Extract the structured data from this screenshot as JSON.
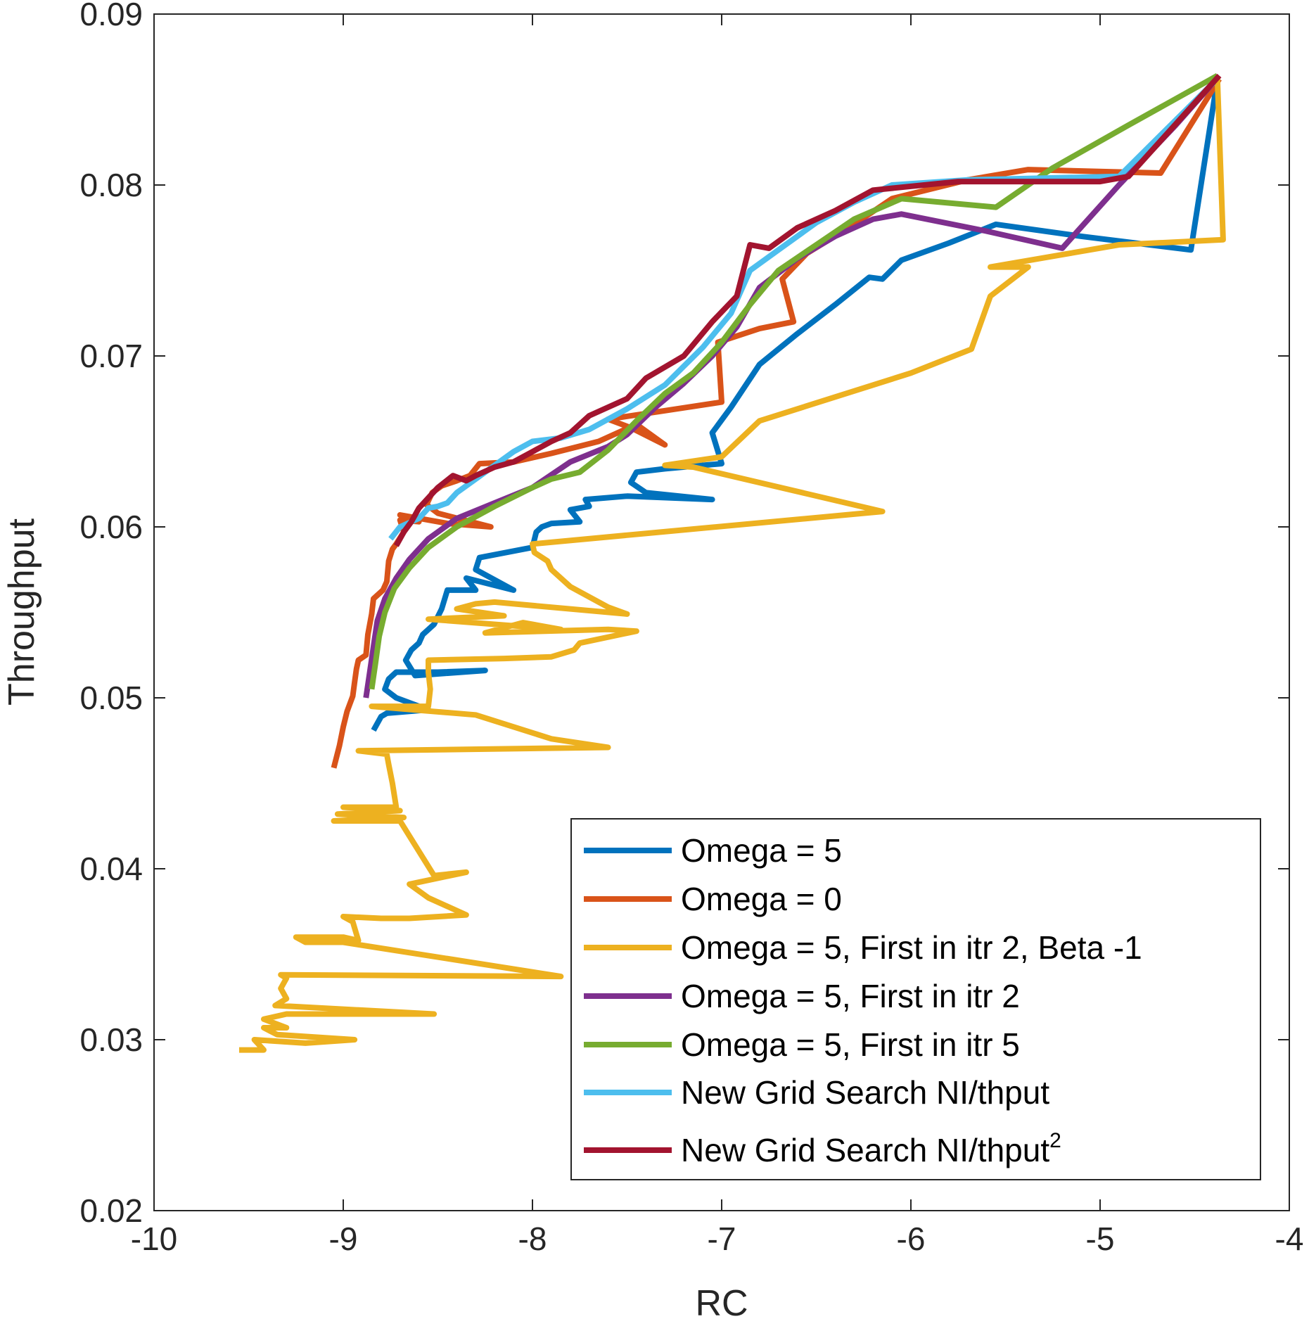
{
  "chart_data": {
    "type": "line",
    "title": "",
    "xlabel": "RC",
    "ylabel": "Throughput",
    "xlim": [
      -10,
      -4
    ],
    "ylim": [
      0.02,
      0.09
    ],
    "xticks": [
      -10,
      -9,
      -8,
      -7,
      -6,
      -5,
      -4
    ],
    "xtick_labels": [
      "-10",
      "-9",
      "-8",
      "-7",
      "-6",
      "-5",
      "-4"
    ],
    "yticks": [
      0.02,
      0.03,
      0.04,
      0.05,
      0.06,
      0.07,
      0.08,
      0.09
    ],
    "ytick_labels": [
      "0.02",
      "0.03",
      "0.04",
      "0.05",
      "0.06",
      "0.07",
      "0.08",
      "0.09"
    ],
    "grid": false,
    "legend_position": "bottom-right",
    "series": [
      {
        "name": "Omega = 5",
        "color": "#0072BD",
        "points": [
          [
            -8.84,
            0.0481
          ],
          [
            -8.8,
            0.0489
          ],
          [
            -8.77,
            0.0491
          ],
          [
            -8.55,
            0.0493
          ],
          [
            -8.72,
            0.05
          ],
          [
            -8.78,
            0.0505
          ],
          [
            -8.76,
            0.0511
          ],
          [
            -8.72,
            0.0515
          ],
          [
            -8.5,
            0.0515
          ],
          [
            -8.25,
            0.0516
          ],
          [
            -8.62,
            0.0513
          ],
          [
            -8.67,
            0.0522
          ],
          [
            -8.64,
            0.0528
          ],
          [
            -8.6,
            0.0532
          ],
          [
            -8.58,
            0.0537
          ],
          [
            -8.52,
            0.0543
          ],
          [
            -8.48,
            0.0552
          ],
          [
            -8.45,
            0.0563
          ],
          [
            -8.3,
            0.0563
          ],
          [
            -8.35,
            0.057
          ],
          [
            -8.1,
            0.0563
          ],
          [
            -8.3,
            0.0575
          ],
          [
            -8.28,
            0.0582
          ],
          [
            -8.0,
            0.0588
          ],
          [
            -7.98,
            0.0597
          ],
          [
            -7.95,
            0.06
          ],
          [
            -7.9,
            0.0602
          ],
          [
            -7.75,
            0.0603
          ],
          [
            -7.8,
            0.061
          ],
          [
            -7.7,
            0.0612
          ],
          [
            -7.72,
            0.0616
          ],
          [
            -7.5,
            0.0618
          ],
          [
            -7.05,
            0.0616
          ],
          [
            -7.4,
            0.062
          ],
          [
            -7.48,
            0.0626
          ],
          [
            -7.45,
            0.0632
          ],
          [
            -7.3,
            0.0634
          ],
          [
            -7.0,
            0.0637
          ],
          [
            -7.05,
            0.0655
          ],
          [
            -6.95,
            0.067
          ],
          [
            -6.8,
            0.0695
          ],
          [
            -6.6,
            0.0713
          ],
          [
            -6.4,
            0.073
          ],
          [
            -6.22,
            0.0746
          ],
          [
            -6.15,
            0.0745
          ],
          [
            -6.05,
            0.0756
          ],
          [
            -5.8,
            0.0766
          ],
          [
            -5.55,
            0.0777
          ],
          [
            -5.1,
            0.077
          ],
          [
            -4.52,
            0.0762
          ],
          [
            -4.38,
            0.0862
          ]
        ]
      },
      {
        "name": "Omega = 0",
        "color": "#D95319",
        "points": [
          [
            -9.05,
            0.0459
          ],
          [
            -9.02,
            0.0472
          ],
          [
            -9.0,
            0.0483
          ],
          [
            -8.98,
            0.0492
          ],
          [
            -8.95,
            0.0501
          ],
          [
            -8.94,
            0.0509
          ],
          [
            -8.93,
            0.0517
          ],
          [
            -8.92,
            0.0522
          ],
          [
            -8.88,
            0.0525
          ],
          [
            -8.87,
            0.0537
          ],
          [
            -8.85,
            0.0549
          ],
          [
            -8.84,
            0.0558
          ],
          [
            -8.79,
            0.0563
          ],
          [
            -8.77,
            0.0568
          ],
          [
            -8.76,
            0.058
          ],
          [
            -8.74,
            0.0587
          ],
          [
            -8.72,
            0.059
          ],
          [
            -8.68,
            0.0597
          ],
          [
            -8.7,
            0.0604
          ],
          [
            -8.6,
            0.0603
          ],
          [
            -8.7,
            0.0607
          ],
          [
            -8.45,
            0.0602
          ],
          [
            -8.22,
            0.06
          ],
          [
            -8.5,
            0.0608
          ],
          [
            -8.56,
            0.0613
          ],
          [
            -8.53,
            0.062
          ],
          [
            -8.48,
            0.0624
          ],
          [
            -8.4,
            0.0627
          ],
          [
            -8.33,
            0.063
          ],
          [
            -8.28,
            0.0637
          ],
          [
            -8.1,
            0.0638
          ],
          [
            -7.9,
            0.0643
          ],
          [
            -7.65,
            0.065
          ],
          [
            -7.45,
            0.066
          ],
          [
            -7.3,
            0.0648
          ],
          [
            -7.48,
            0.0658
          ],
          [
            -7.6,
            0.0663
          ],
          [
            -7.3,
            0.0668
          ],
          [
            -7.0,
            0.0673
          ],
          [
            -7.02,
            0.0708
          ],
          [
            -6.8,
            0.0716
          ],
          [
            -6.62,
            0.072
          ],
          [
            -6.68,
            0.0745
          ],
          [
            -6.55,
            0.076
          ],
          [
            -6.3,
            0.0777
          ],
          [
            -6.1,
            0.0792
          ],
          [
            -5.7,
            0.0803
          ],
          [
            -5.38,
            0.0809
          ],
          [
            -4.68,
            0.0807
          ],
          [
            -4.37,
            0.0862
          ]
        ]
      },
      {
        "name": "Omega = 5, First in itr 2, Beta -1",
        "color": "#EDB120",
        "points": [
          [
            -9.55,
            0.0294
          ],
          [
            -9.42,
            0.0294
          ],
          [
            -9.47,
            0.03
          ],
          [
            -9.2,
            0.0298
          ],
          [
            -8.94,
            0.03
          ],
          [
            -9.35,
            0.0303
          ],
          [
            -9.42,
            0.0307
          ],
          [
            -9.3,
            0.0307
          ],
          [
            -9.42,
            0.0312
          ],
          [
            -9.3,
            0.0315
          ],
          [
            -8.52,
            0.0315
          ],
          [
            -9.36,
            0.032
          ],
          [
            -9.3,
            0.0324
          ],
          [
            -9.33,
            0.033
          ],
          [
            -9.3,
            0.0336
          ],
          [
            -9.33,
            0.0338
          ],
          [
            -7.85,
            0.0337
          ],
          [
            -9.0,
            0.0357
          ],
          [
            -9.2,
            0.0357
          ],
          [
            -9.25,
            0.036
          ],
          [
            -9.0,
            0.036
          ],
          [
            -8.92,
            0.0358
          ],
          [
            -8.95,
            0.0369
          ],
          [
            -9.0,
            0.0372
          ],
          [
            -8.8,
            0.0371
          ],
          [
            -8.65,
            0.0371
          ],
          [
            -8.35,
            0.0373
          ],
          [
            -8.55,
            0.0383
          ],
          [
            -8.65,
            0.0391
          ],
          [
            -8.35,
            0.0398
          ],
          [
            -8.52,
            0.0396
          ],
          [
            -8.7,
            0.0428
          ],
          [
            -9.05,
            0.0428
          ],
          [
            -8.68,
            0.043
          ],
          [
            -9.03,
            0.0432
          ],
          [
            -8.7,
            0.0434
          ],
          [
            -9.0,
            0.0436
          ],
          [
            -8.72,
            0.0436
          ],
          [
            -8.74,
            0.045
          ],
          [
            -8.76,
            0.0461
          ],
          [
            -8.77,
            0.0467
          ],
          [
            -8.92,
            0.0469
          ],
          [
            -7.6,
            0.0471
          ],
          [
            -7.9,
            0.0476
          ],
          [
            -8.3,
            0.049
          ],
          [
            -8.85,
            0.0495
          ],
          [
            -8.55,
            0.0495
          ],
          [
            -8.54,
            0.0505
          ],
          [
            -8.55,
            0.0515
          ],
          [
            -8.55,
            0.0522
          ],
          [
            -8.15,
            0.0523
          ],
          [
            -7.9,
            0.0524
          ],
          [
            -7.78,
            0.0528
          ],
          [
            -7.75,
            0.0532
          ],
          [
            -7.45,
            0.0539
          ],
          [
            -7.6,
            0.054
          ],
          [
            -8.25,
            0.0538
          ],
          [
            -8.05,
            0.0544
          ],
          [
            -7.85,
            0.054
          ],
          [
            -8.55,
            0.0546
          ],
          [
            -8.15,
            0.0548
          ],
          [
            -8.4,
            0.0552
          ],
          [
            -8.3,
            0.0555
          ],
          [
            -8.2,
            0.0556
          ],
          [
            -7.5,
            0.0549
          ],
          [
            -7.6,
            0.0553
          ],
          [
            -7.8,
            0.0565
          ],
          [
            -7.9,
            0.0575
          ],
          [
            -7.92,
            0.058
          ],
          [
            -7.99,
            0.0585
          ],
          [
            -8.0,
            0.059
          ],
          [
            -6.15,
            0.0609
          ],
          [
            -7.15,
            0.0635
          ],
          [
            -7.3,
            0.0636
          ],
          [
            -7.0,
            0.0641
          ],
          [
            -6.8,
            0.0662
          ],
          [
            -6.0,
            0.069
          ],
          [
            -5.68,
            0.0704
          ],
          [
            -5.58,
            0.0735
          ],
          [
            -5.38,
            0.0752
          ],
          [
            -5.58,
            0.0752
          ],
          [
            -4.9,
            0.0765
          ],
          [
            -4.35,
            0.0768
          ],
          [
            -4.38,
            0.0862
          ]
        ]
      },
      {
        "name": "Omega = 5, First in itr 2",
        "color": "#7E2F8E",
        "points": [
          [
            -8.88,
            0.05
          ],
          [
            -8.86,
            0.0515
          ],
          [
            -8.84,
            0.053
          ],
          [
            -8.82,
            0.0545
          ],
          [
            -8.78,
            0.0558
          ],
          [
            -8.72,
            0.057
          ],
          [
            -8.65,
            0.0581
          ],
          [
            -8.55,
            0.0593
          ],
          [
            -8.4,
            0.0605
          ],
          [
            -8.2,
            0.0614
          ],
          [
            -8.0,
            0.0623
          ],
          [
            -7.8,
            0.0638
          ],
          [
            -7.6,
            0.0647
          ],
          [
            -7.5,
            0.0654
          ],
          [
            -7.35,
            0.067
          ],
          [
            -7.2,
            0.0684
          ],
          [
            -7.05,
            0.07
          ],
          [
            -6.92,
            0.0717
          ],
          [
            -6.8,
            0.074
          ],
          [
            -6.6,
            0.0757
          ],
          [
            -6.4,
            0.077
          ],
          [
            -6.2,
            0.078
          ],
          [
            -6.05,
            0.0783
          ],
          [
            -5.6,
            0.0773
          ],
          [
            -5.2,
            0.0763
          ],
          [
            -4.9,
            0.08
          ],
          [
            -4.6,
            0.0835
          ],
          [
            -4.4,
            0.086
          ]
        ]
      },
      {
        "name": "Omega = 5, First in itr 5",
        "color": "#77AC30",
        "points": [
          [
            -8.85,
            0.0505
          ],
          [
            -8.83,
            0.052
          ],
          [
            -8.81,
            0.0536
          ],
          [
            -8.78,
            0.055
          ],
          [
            -8.73,
            0.0564
          ],
          [
            -8.65,
            0.0576
          ],
          [
            -8.55,
            0.0588
          ],
          [
            -8.4,
            0.06
          ],
          [
            -8.2,
            0.0612
          ],
          [
            -8.0,
            0.0623
          ],
          [
            -7.9,
            0.0628
          ],
          [
            -7.75,
            0.0632
          ],
          [
            -7.6,
            0.0645
          ],
          [
            -7.45,
            0.0662
          ],
          [
            -7.3,
            0.0678
          ],
          [
            -7.15,
            0.069
          ],
          [
            -7.0,
            0.0708
          ],
          [
            -6.85,
            0.073
          ],
          [
            -6.7,
            0.075
          ],
          [
            -6.5,
            0.0765
          ],
          [
            -6.3,
            0.078
          ],
          [
            -6.05,
            0.0792
          ],
          [
            -5.55,
            0.0787
          ],
          [
            -5.25,
            0.081
          ],
          [
            -4.85,
            0.0835
          ],
          [
            -4.38,
            0.0864
          ]
        ]
      },
      {
        "name": "New Grid Search NI/thput",
        "color": "#4DBEEE",
        "points": [
          [
            -8.75,
            0.0593
          ],
          [
            -8.7,
            0.06
          ],
          [
            -8.6,
            0.0605
          ],
          [
            -8.55,
            0.0611
          ],
          [
            -8.5,
            0.0612
          ],
          [
            -8.45,
            0.0614
          ],
          [
            -8.4,
            0.062
          ],
          [
            -8.3,
            0.0628
          ],
          [
            -8.2,
            0.0636
          ],
          [
            -8.1,
            0.0644
          ],
          [
            -8.0,
            0.065
          ],
          [
            -7.85,
            0.0652
          ],
          [
            -7.7,
            0.0657
          ],
          [
            -7.5,
            0.0669
          ],
          [
            -7.3,
            0.0683
          ],
          [
            -7.1,
            0.0705
          ],
          [
            -6.95,
            0.0725
          ],
          [
            -6.85,
            0.075
          ],
          [
            -6.7,
            0.0762
          ],
          [
            -6.5,
            0.0778
          ],
          [
            -6.3,
            0.079
          ],
          [
            -6.1,
            0.08
          ],
          [
            -5.7,
            0.0803
          ],
          [
            -4.9,
            0.0805
          ],
          [
            -4.4,
            0.086
          ]
        ]
      },
      {
        "name": "New Grid Search NI/thput",
        "legend_superscript": "2",
        "color": "#A2142F",
        "points": [
          [
            -8.72,
            0.0589
          ],
          [
            -8.68,
            0.0597
          ],
          [
            -8.64,
            0.0603
          ],
          [
            -8.6,
            0.0611
          ],
          [
            -8.55,
            0.0617
          ],
          [
            -8.5,
            0.0623
          ],
          [
            -8.42,
            0.063
          ],
          [
            -8.35,
            0.0627
          ],
          [
            -8.3,
            0.063
          ],
          [
            -8.2,
            0.0635
          ],
          [
            -8.1,
            0.0638
          ],
          [
            -8.0,
            0.0644
          ],
          [
            -7.9,
            0.065
          ],
          [
            -7.8,
            0.0655
          ],
          [
            -7.7,
            0.0665
          ],
          [
            -7.6,
            0.067
          ],
          [
            -7.5,
            0.0675
          ],
          [
            -7.4,
            0.0687
          ],
          [
            -7.2,
            0.07
          ],
          [
            -7.05,
            0.072
          ],
          [
            -6.92,
            0.0735
          ],
          [
            -6.85,
            0.0765
          ],
          [
            -6.75,
            0.0763
          ],
          [
            -6.6,
            0.0775
          ],
          [
            -6.4,
            0.0785
          ],
          [
            -6.2,
            0.0797
          ],
          [
            -5.75,
            0.0802
          ],
          [
            -5.0,
            0.0802
          ],
          [
            -4.85,
            0.0805
          ],
          [
            -4.37,
            0.0864
          ]
        ]
      }
    ]
  }
}
